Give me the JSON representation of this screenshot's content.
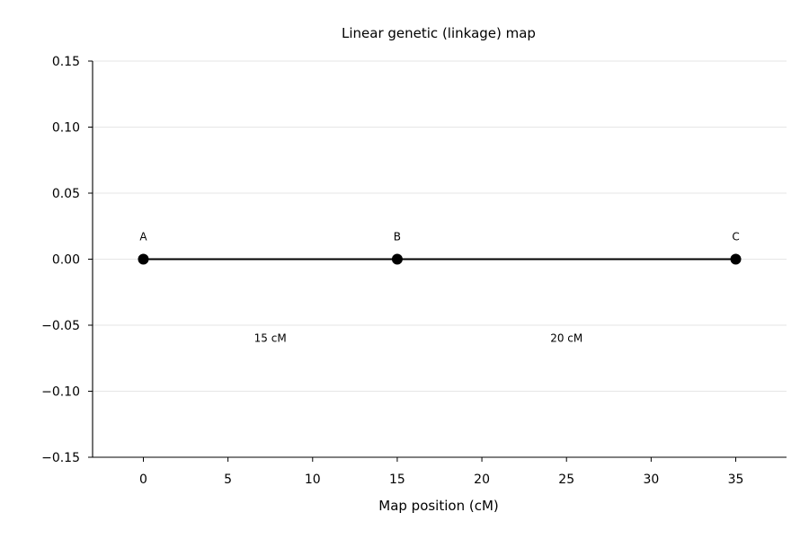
{
  "chart_data": {
    "type": "scatter",
    "title": "Linear genetic (linkage) map",
    "xlabel": "Map position (cM)",
    "ylabel": "",
    "xlim": [
      -3,
      38
    ],
    "ylim": [
      -0.15,
      0.15
    ],
    "x_ticks": [
      0,
      5,
      10,
      15,
      20,
      25,
      30,
      35
    ],
    "x_tick_labels": [
      "0",
      "5",
      "10",
      "15",
      "20",
      "25",
      "30",
      "35"
    ],
    "y_ticks": [
      -0.15,
      -0.1,
      -0.05,
      0.0,
      0.05,
      0.1,
      0.15
    ],
    "y_tick_labels": [
      "−0.15",
      "−0.10",
      "−0.05",
      "0.00",
      "0.05",
      "0.10",
      "0.15"
    ],
    "grid": "horizontal",
    "points": [
      {
        "label": "A",
        "x": 0,
        "y": 0
      },
      {
        "label": "B",
        "x": 15,
        "y": 0
      },
      {
        "label": "C",
        "x": 35,
        "y": 0
      }
    ],
    "distance_labels": [
      {
        "text": "15 cM",
        "x": 7.5,
        "y": -0.06
      },
      {
        "text": "20 cM",
        "x": 25,
        "y": -0.06
      }
    ],
    "colors": {
      "line": "#000000",
      "marker": "#000000",
      "grid": "#e6e6e6"
    }
  }
}
